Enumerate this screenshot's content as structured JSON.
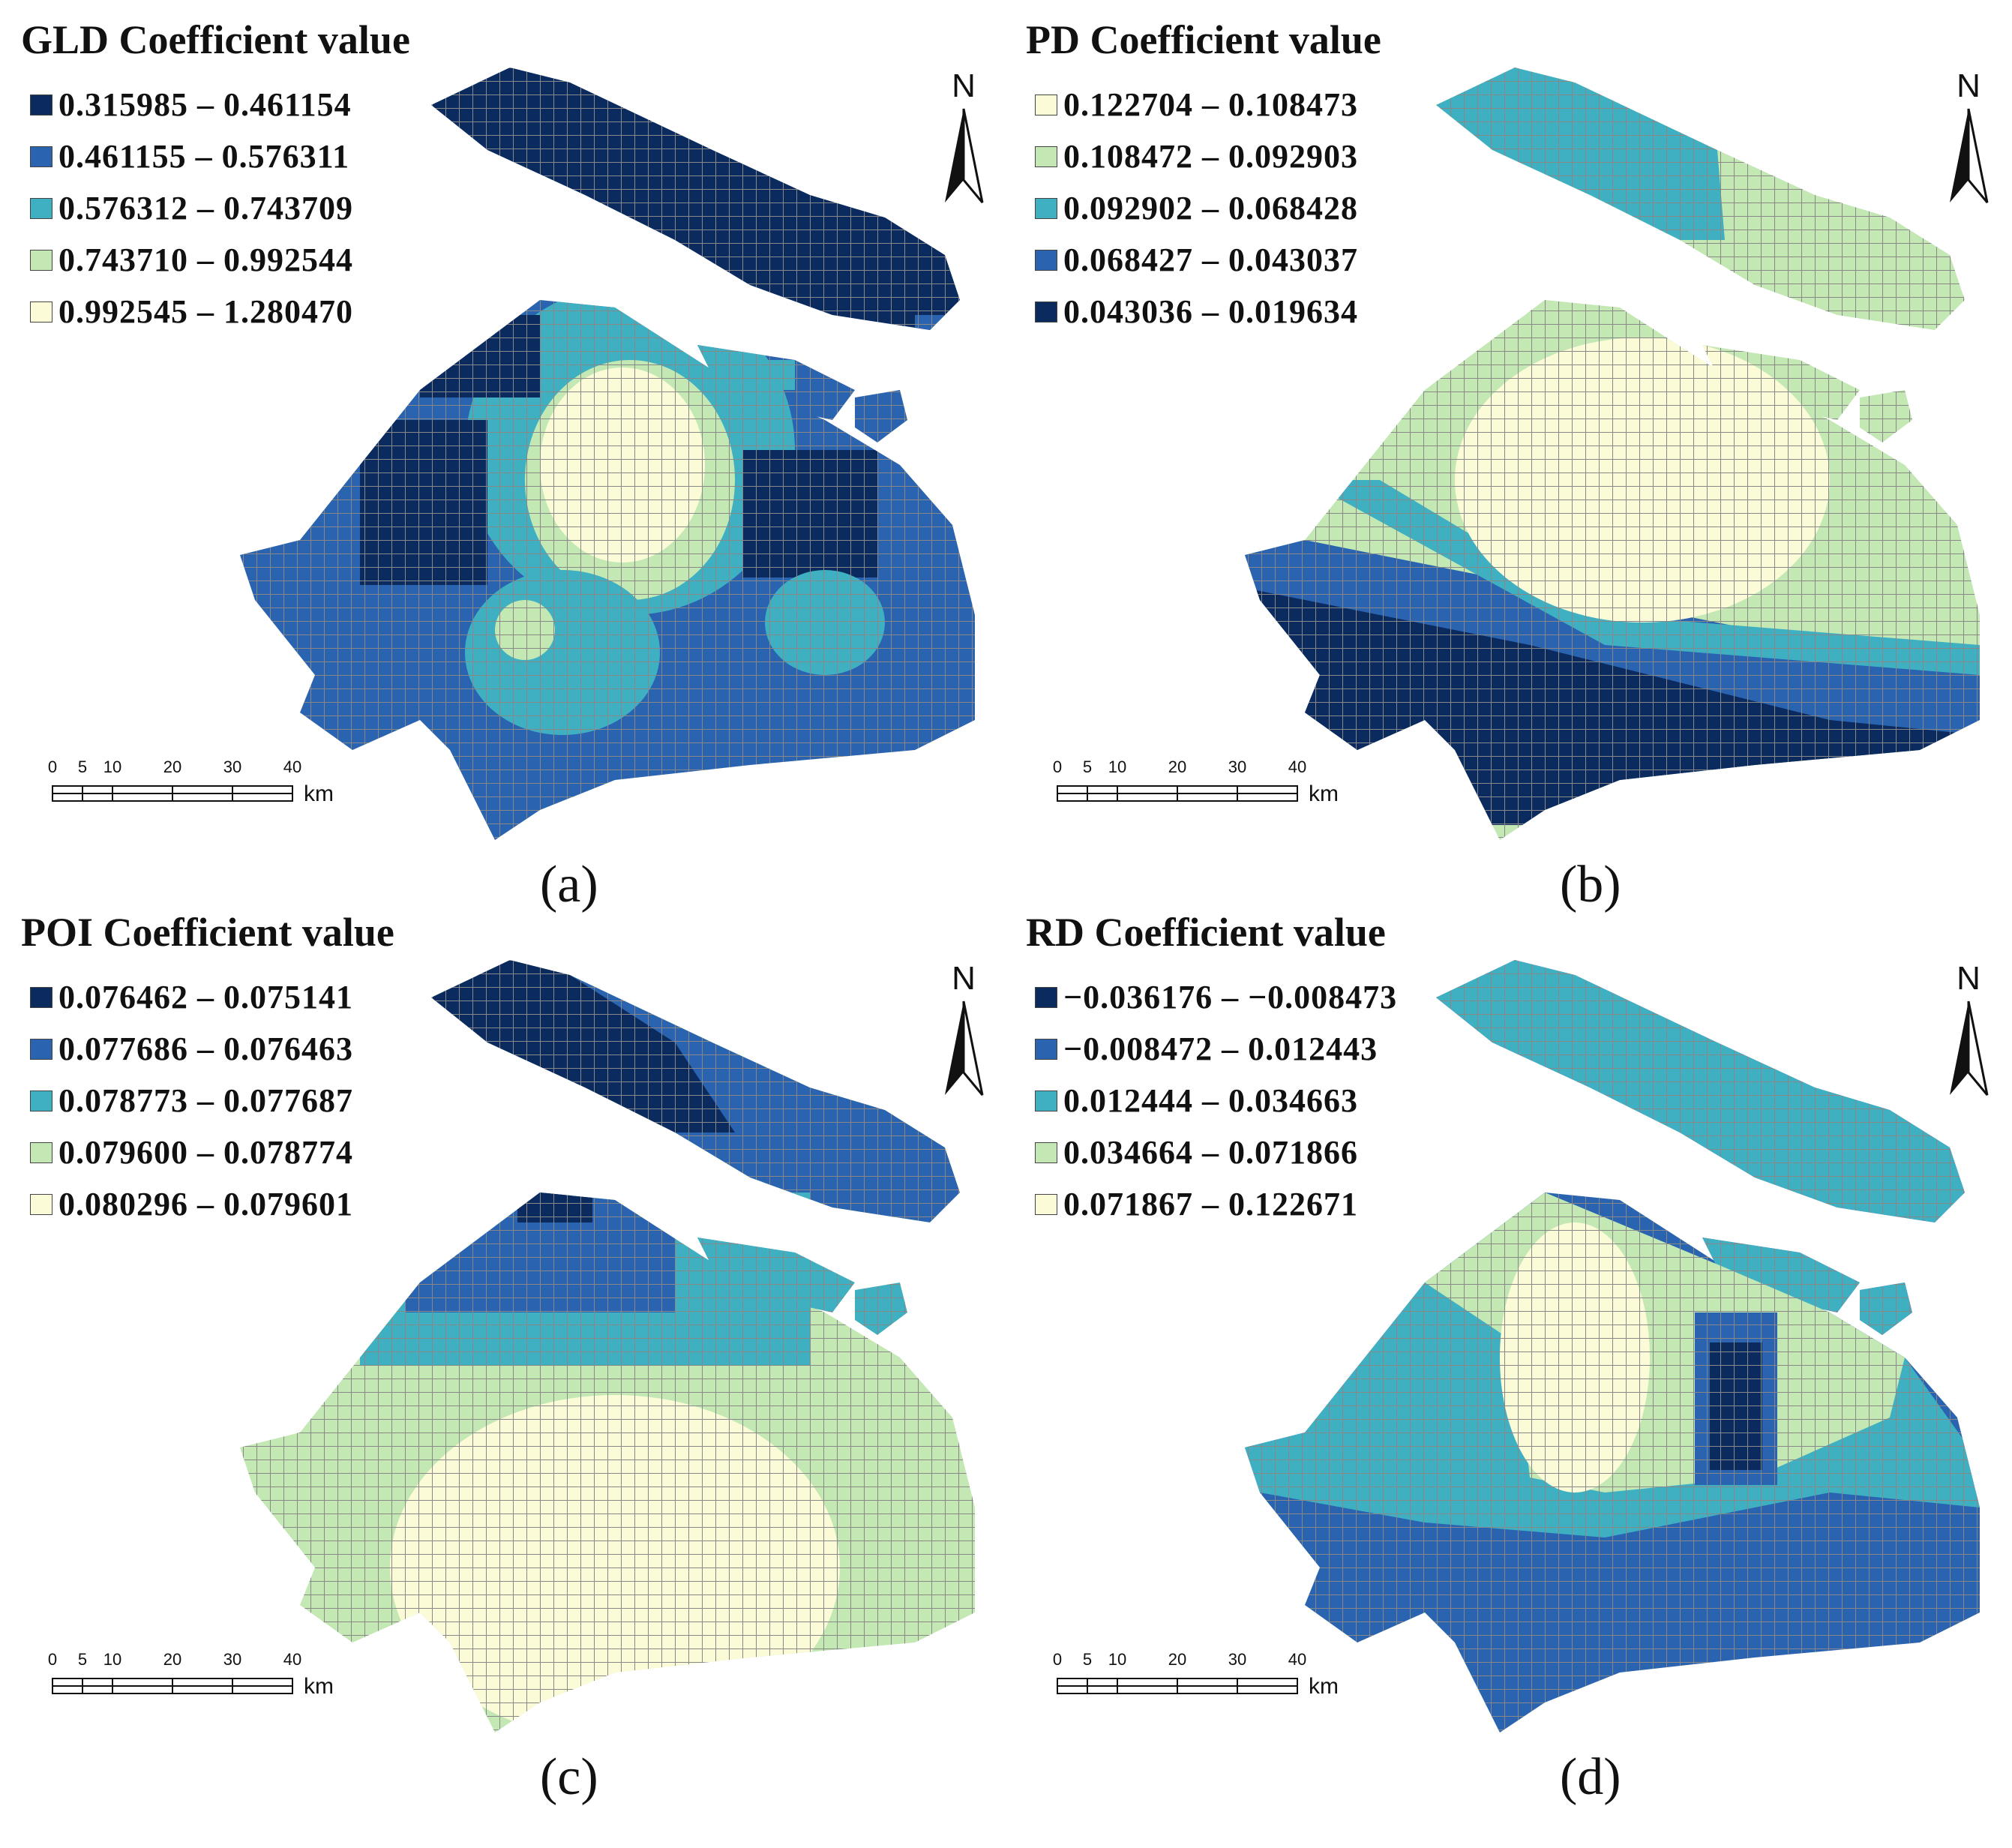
{
  "figure": {
    "panels": [
      {
        "id": "a",
        "title": "GLD Coefficient value",
        "caption": "(a)",
        "legend": [
          {
            "label": "0.315985 – 0.461154",
            "color": "#0b2a5e"
          },
          {
            "label": "0.461155 – 0.576311",
            "color": "#2a63b0"
          },
          {
            "label": "0.576312 – 0.743709",
            "color": "#3fb0c2"
          },
          {
            "label": "0.743710 – 0.992544",
            "color": "#c4e8b4"
          },
          {
            "label": "0.992545 – 1.280470",
            "color": "#fbfbd8"
          }
        ]
      },
      {
        "id": "b",
        "title": "PD Coefficient value",
        "caption": "(b)",
        "legend": [
          {
            "label": "0.122704 – 0.108473",
            "color": "#fbfbd8"
          },
          {
            "label": "0.108472 – 0.092903",
            "color": "#c4e8b4"
          },
          {
            "label": "0.092902 – 0.068428",
            "color": "#3fb0c2"
          },
          {
            "label": "0.068427 – 0.043037",
            "color": "#2a63b0"
          },
          {
            "label": "0.043036 – 0.019634",
            "color": "#0b2a5e"
          }
        ]
      },
      {
        "id": "c",
        "title": "POI Coefficient value",
        "caption": "(c)",
        "legend": [
          {
            "label": "0.076462 – 0.075141",
            "color": "#0b2a5e"
          },
          {
            "label": "0.077686 – 0.076463",
            "color": "#2a63b0"
          },
          {
            "label": "0.078773 – 0.077687",
            "color": "#3fb0c2"
          },
          {
            "label": "0.079600 – 0.078774",
            "color": "#c4e8b4"
          },
          {
            "label": "0.080296 – 0.079601",
            "color": "#fbfbd8"
          }
        ]
      },
      {
        "id": "d",
        "title": "RD Coefficient value",
        "caption": "(d)",
        "legend": [
          {
            "label": "−0.036176 – −0.008473",
            "color": "#0b2a5e"
          },
          {
            "label": "−0.008472 – 0.012443",
            "color": "#2a63b0"
          },
          {
            "label": "0.012444 – 0.034663",
            "color": "#3fb0c2"
          },
          {
            "label": "0.034664 – 0.071866",
            "color": "#c4e8b4"
          },
          {
            "label": "0.071867 – 0.122671",
            "color": "#fbfbd8"
          }
        ]
      }
    ],
    "north_label": "N",
    "scalebar": {
      "ticks": [
        "0",
        "5",
        "10",
        "20",
        "30",
        "40"
      ],
      "unit": "km"
    }
  }
}
